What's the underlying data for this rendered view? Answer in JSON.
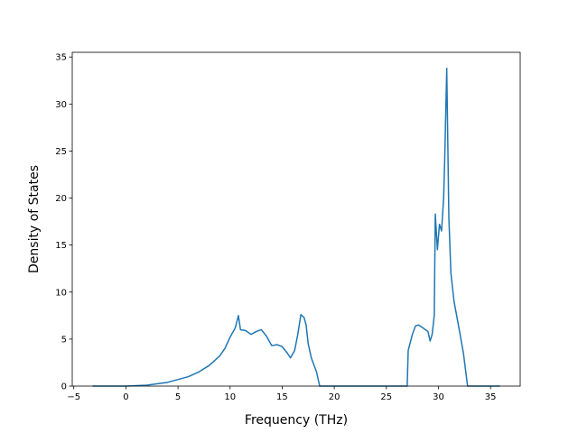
{
  "chart_data": {
    "type": "line",
    "xlabel": "Frequency (THz)",
    "ylabel": "Density of States",
    "color": "#1f77b4",
    "x": [
      -3.2,
      0,
      2,
      4,
      6,
      7,
      8,
      9,
      9.5,
      10,
      10.5,
      10.8,
      11,
      11.5,
      12,
      12.5,
      13,
      13.5,
      14,
      14.5,
      15,
      15.5,
      15.8,
      16.2,
      16.5,
      16.8,
      17.1,
      17.3,
      17.5,
      17.8,
      18,
      18.3,
      18.6,
      27,
      27.1,
      27.5,
      27.8,
      28.1,
      28.5,
      29,
      29.2,
      29.4,
      29.6,
      29.7,
      29.9,
      30.1,
      30.3,
      30.5,
      30.6,
      30.8,
      31,
      31.2,
      31.5,
      32,
      32.4,
      32.8,
      35.9
    ],
    "values": [
      0,
      0,
      0.1,
      0.4,
      1.0,
      1.5,
      2.2,
      3.2,
      4.0,
      5.2,
      6.2,
      7.5,
      6.0,
      5.9,
      5.5,
      5.8,
      6.0,
      5.3,
      4.3,
      4.4,
      4.2,
      3.5,
      3.0,
      3.8,
      5.5,
      7.6,
      7.3,
      6.5,
      4.5,
      3.0,
      2.4,
      1.5,
      0,
      0,
      3.8,
      5.5,
      6.4,
      6.5,
      6.2,
      5.8,
      4.8,
      5.5,
      7.5,
      18.3,
      14.5,
      17.2,
      16.5,
      20,
      24,
      33.8,
      18,
      12,
      9,
      6.0,
      3.5,
      0,
      0
    ],
    "xlim": [
      -5.15,
      37.85
    ],
    "ylim": [
      0,
      35.5
    ],
    "xticks": [
      {
        "value": -5,
        "label": "−5"
      },
      0,
      5,
      10,
      15,
      20,
      25,
      30,
      35
    ],
    "yticks": [
      0,
      5,
      10,
      15,
      20,
      25,
      30,
      35
    ]
  }
}
